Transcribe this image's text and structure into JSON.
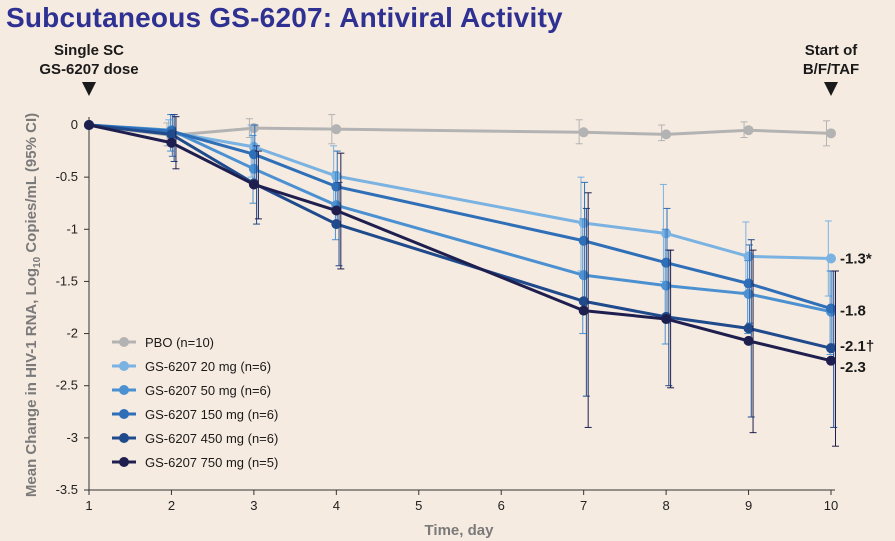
{
  "title": "Subcutaneous GS-6207: Antiviral Activity",
  "markers": {
    "left": {
      "line1": "Single SC",
      "line2": "GS-6207 dose"
    },
    "right": {
      "line1": "Start of",
      "line2": "B/F/TAF"
    }
  },
  "chart_data": {
    "type": "line",
    "xlabel": "Time, day",
    "ylabel_pre": "Mean Change in HIV-1 RNA, Log",
    "ylabel_sub": "10",
    "ylabel_post": " Copies/mL (95% CI)",
    "x": [
      1,
      2,
      3,
      4,
      7,
      8,
      9,
      10
    ],
    "xticks": [
      1,
      2,
      3,
      4,
      5,
      6,
      7,
      8,
      9,
      10
    ],
    "ylim": [
      -3.5,
      0
    ],
    "yticks": [
      0,
      -0.5,
      -1,
      -1.5,
      -2,
      -2.5,
      -3,
      -3.5
    ],
    "ytick_labels": [
      "0",
      "-0.5",
      "-1",
      "-1.5",
      "-2",
      "-2.5",
      "-3",
      "-3.5"
    ],
    "series": [
      {
        "name": "PBO (n=10)",
        "color": "#b3b3b3",
        "values": [
          0,
          -0.1,
          -0.03,
          -0.04,
          -0.07,
          -0.09,
          -0.05,
          -0.08
        ],
        "ci_low": [
          0,
          -0.2,
          -0.12,
          -0.18,
          -0.18,
          -0.15,
          -0.12,
          -0.2
        ],
        "ci_high": [
          0,
          0.02,
          0.06,
          0.1,
          0.05,
          0.0,
          0.03,
          0.04
        ]
      },
      {
        "name": "GS-6207 20 mg (n=6)",
        "color": "#7ab2e2",
        "values": [
          0,
          -0.07,
          -0.21,
          -0.49,
          -0.94,
          -1.04,
          -1.26,
          -1.28
        ],
        "ci_low": [
          0,
          -0.2,
          -0.5,
          -0.8,
          -1.4,
          -1.5,
          -1.6,
          -1.64
        ],
        "ci_high": [
          0,
          0.05,
          0.0,
          -0.2,
          -0.5,
          -0.57,
          -0.93,
          -0.92
        ]
      },
      {
        "name": "GS-6207 50 mg (n=6)",
        "color": "#4b91d1",
        "values": [
          0,
          -0.05,
          -0.42,
          -0.77,
          -1.44,
          -1.54,
          -1.62,
          -1.79
        ],
        "ci_low": [
          0,
          -0.25,
          -0.75,
          -1.1,
          -2.0,
          -2.1,
          -2.0,
          -2.2
        ],
        "ci_high": [
          0,
          0.1,
          -0.1,
          -0.45,
          -0.9,
          -1.0,
          -1.3,
          -1.4
        ]
      },
      {
        "name": "GS-6207 150 mg (n=6)",
        "color": "#2f6fb8",
        "values": [
          0,
          -0.06,
          -0.28,
          -0.59,
          -1.11,
          -1.32,
          -1.52,
          -1.76
        ],
        "ci_low": [
          0,
          -0.3,
          -0.6,
          -0.95,
          -1.7,
          -1.9,
          -1.9,
          -2.1
        ],
        "ci_high": [
          0,
          0.1,
          0.0,
          -0.25,
          -0.55,
          -0.8,
          -1.15,
          -1.4
        ]
      },
      {
        "name": "GS-6207 450 mg (n=6)",
        "color": "#1f4a8c",
        "values": [
          0,
          -0.09,
          -0.56,
          -0.95,
          -1.69,
          -1.84,
          -1.95,
          -2.14
        ],
        "ci_low": [
          0,
          -0.35,
          -0.95,
          -1.35,
          -2.6,
          -2.5,
          -2.8,
          -2.9
        ],
        "ci_high": [
          0,
          0.1,
          -0.2,
          -0.55,
          -0.8,
          -1.2,
          -1.1,
          -1.4
        ]
      },
      {
        "name": "GS-6207 750 mg (n=5)",
        "color": "#1f1f4f",
        "values": [
          0,
          -0.17,
          -0.57,
          -0.82,
          -1.78,
          -1.86,
          -2.07,
          -2.26
        ],
        "ci_low": [
          0,
          -0.42,
          -0.9,
          -1.38,
          -2.9,
          -2.52,
          -2.95,
          -3.08
        ],
        "ci_high": [
          0,
          0.08,
          -0.25,
          -0.27,
          -0.65,
          -1.2,
          -1.2,
          -1.4
        ]
      }
    ],
    "end_labels": [
      {
        "text": "-1.3*",
        "value": -1.28
      },
      {
        "text": "-1.8",
        "value": -1.78
      },
      {
        "text": "-2.1†",
        "value": -2.12
      },
      {
        "text": "-2.3",
        "value": -2.32
      }
    ]
  }
}
